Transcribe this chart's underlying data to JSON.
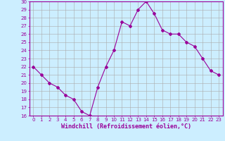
{
  "x": [
    0,
    1,
    2,
    3,
    4,
    5,
    6,
    7,
    8,
    9,
    10,
    11,
    12,
    13,
    14,
    15,
    16,
    17,
    18,
    19,
    20,
    21,
    22,
    23
  ],
  "y": [
    22,
    21,
    20,
    19.5,
    18.5,
    18,
    16.5,
    16,
    19.5,
    22,
    24,
    27.5,
    27,
    29,
    30,
    28.5,
    26.5,
    26,
    26,
    25,
    24.5,
    23,
    21.5,
    21
  ],
  "line_color": "#990099",
  "marker": "D",
  "marker_size": 2,
  "bg_color": "#cceeff",
  "grid_color": "#aaaaaa",
  "xlabel": "Windchill (Refroidissement éolien,°C)",
  "ylabel": "",
  "ylim": [
    16,
    30
  ],
  "xlim": [
    -0.5,
    23.5
  ],
  "yticks": [
    16,
    17,
    18,
    19,
    20,
    21,
    22,
    23,
    24,
    25,
    26,
    27,
    28,
    29,
    30
  ],
  "xticks": [
    0,
    1,
    2,
    3,
    4,
    5,
    6,
    7,
    8,
    9,
    10,
    11,
    12,
    13,
    14,
    15,
    16,
    17,
    18,
    19,
    20,
    21,
    22,
    23
  ],
  "axis_color": "#990099",
  "tick_color": "#990099",
  "label_color": "#990099",
  "tick_fontsize": 5,
  "xlabel_fontsize": 6
}
